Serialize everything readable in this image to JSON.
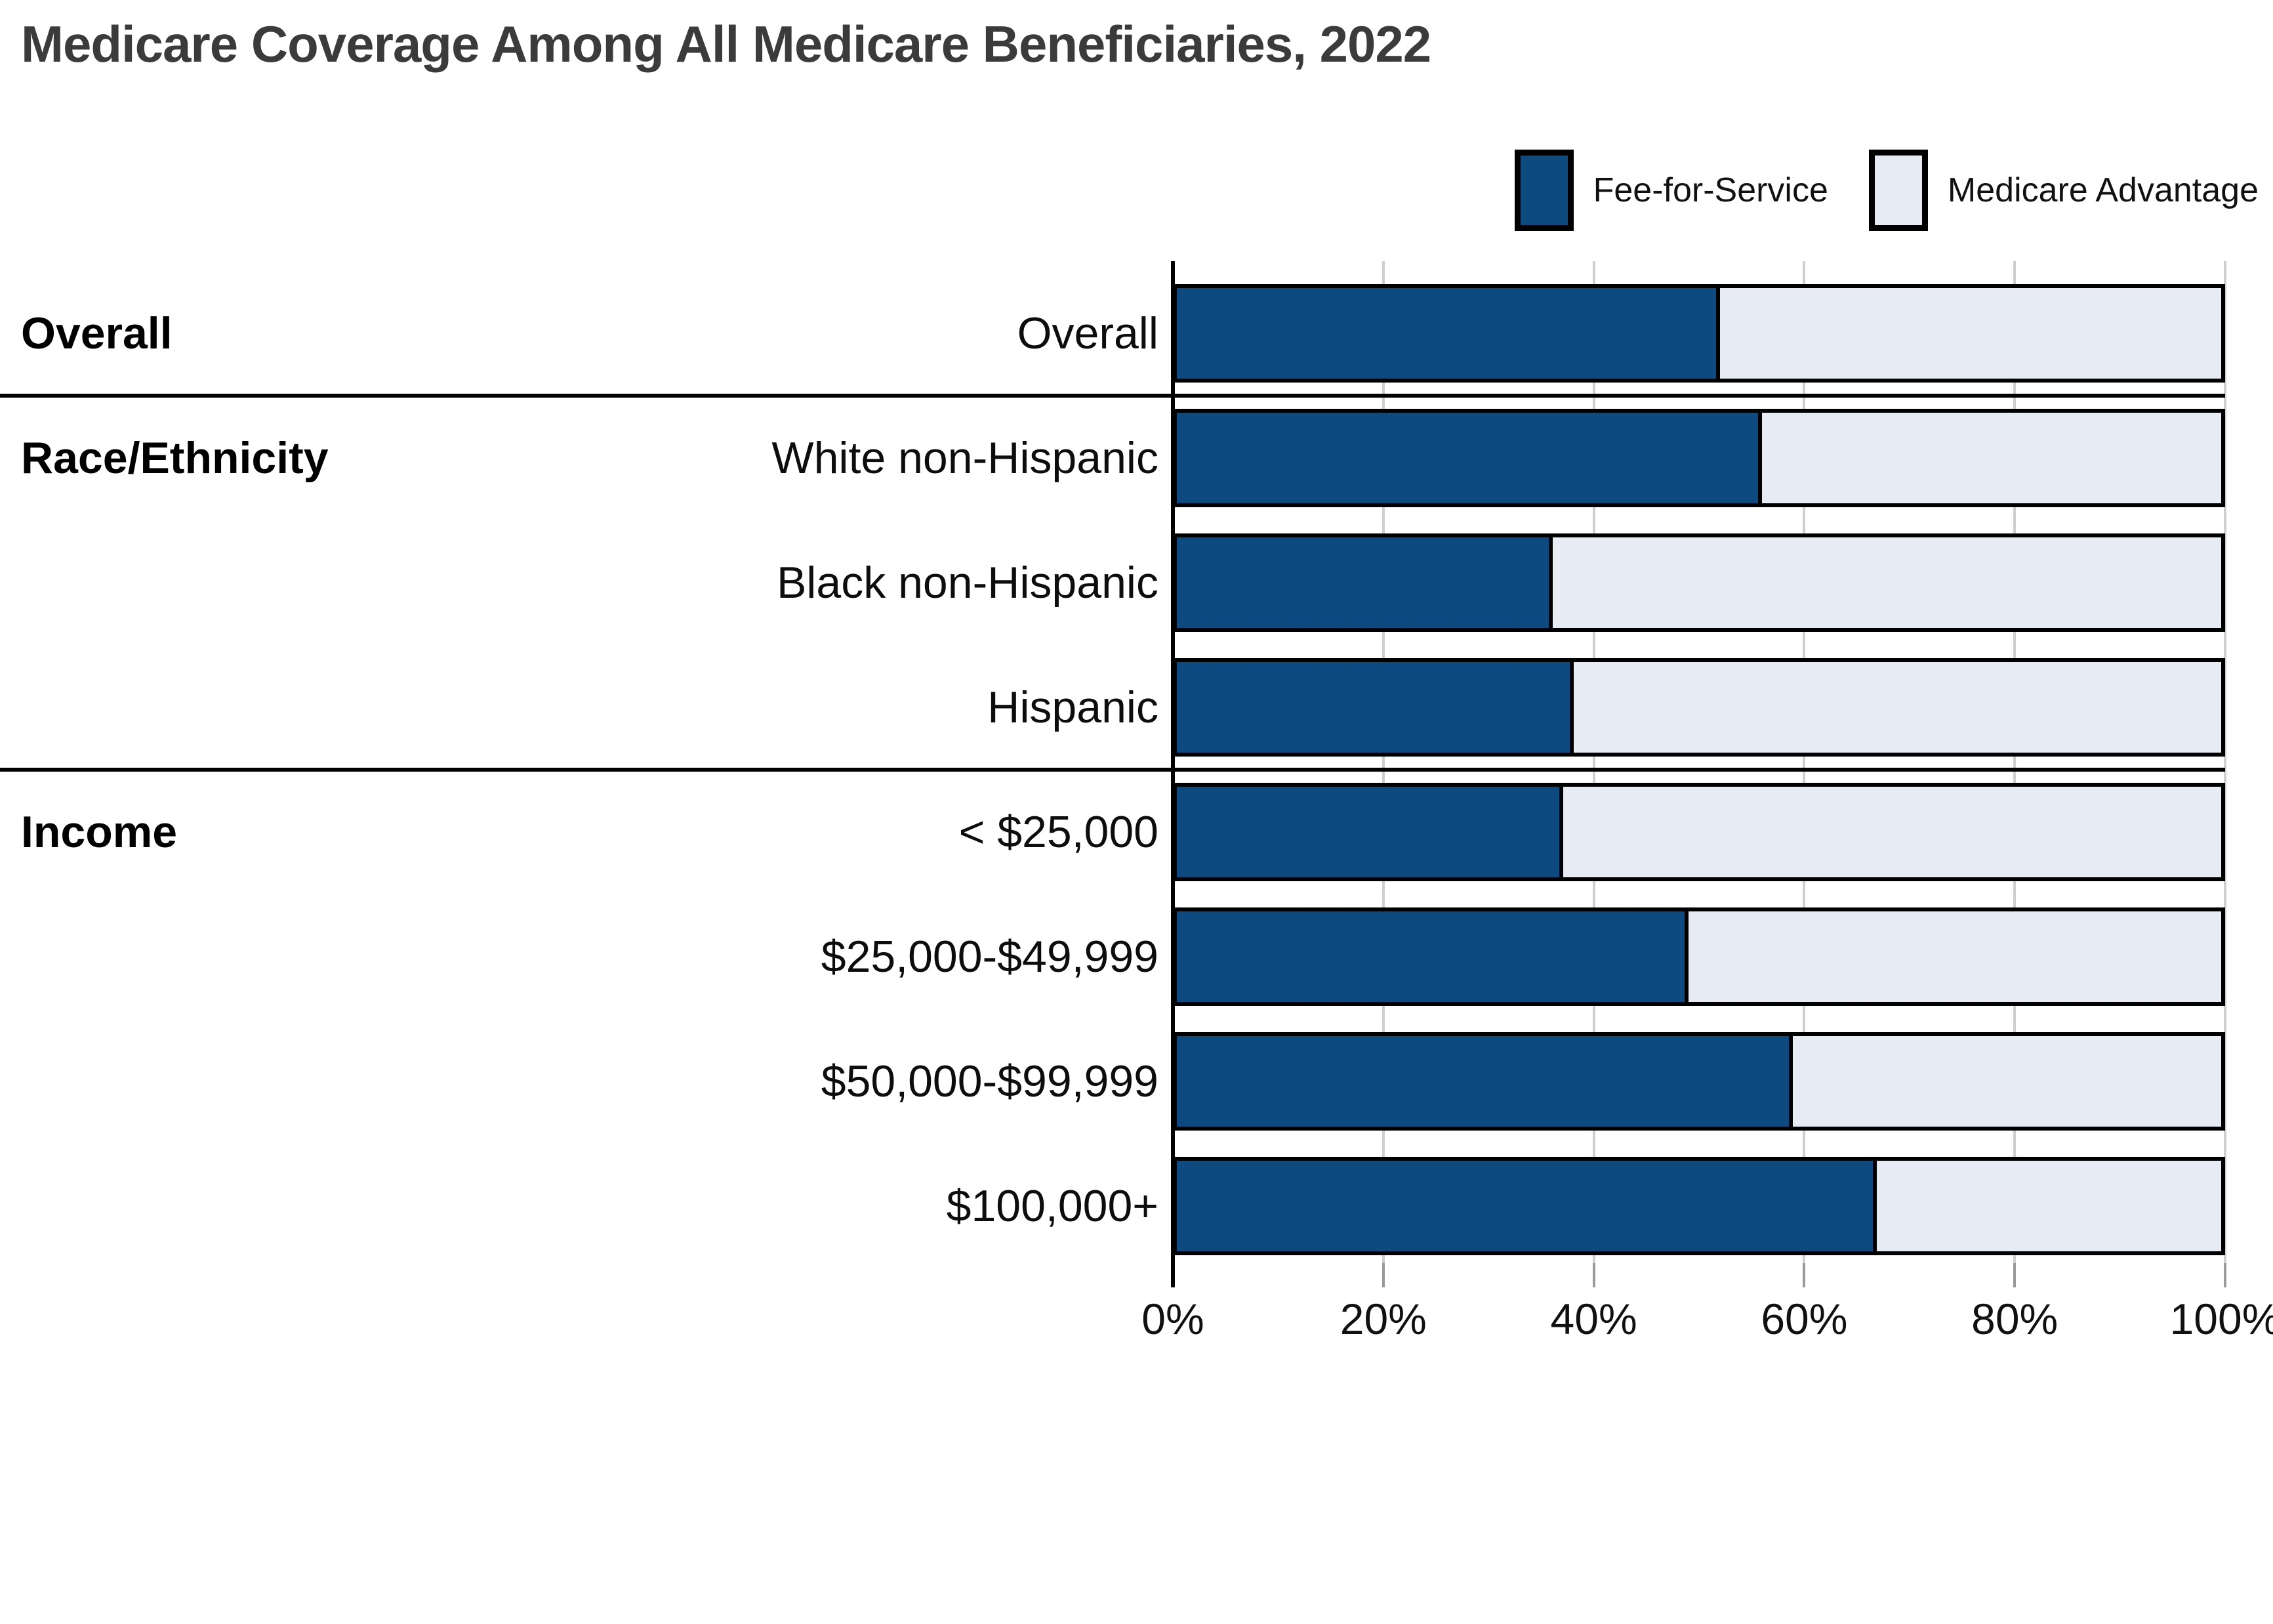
{
  "title": "Medicare Coverage Among All Medicare Beneficiaries, 2022",
  "legend": {
    "items": [
      {
        "name": "Fee-for-Service",
        "color": "#0d4a7f"
      },
      {
        "name": "Medicare Advantage",
        "color": "#e7ebf3"
      }
    ],
    "position": "top-right"
  },
  "chart_data": {
    "type": "bar",
    "orientation": "horizontal",
    "stacked": true,
    "title": "Medicare Coverage Among All Medicare Beneficiaries, 2022",
    "categories": [
      "Overall",
      "White non-Hispanic",
      "Black non-Hispanic",
      "Hispanic",
      "< $25,000",
      "$25,000-$49,999",
      "$50,000-$99,999",
      "$100,000+"
    ],
    "series": [
      {
        "name": "Fee-for-Service",
        "color": "#0d4a7f",
        "values": [
          52,
          56,
          36,
          38,
          37,
          49,
          59,
          67
        ]
      },
      {
        "name": "Medicare Advantage",
        "color": "#e7ebf3",
        "values": [
          48,
          44,
          64,
          62,
          63,
          51,
          41,
          33
        ]
      }
    ],
    "sections": [
      {
        "label": "Overall",
        "start_row": 0
      },
      {
        "label": "Race/Ethnicity",
        "start_row": 1
      },
      {
        "label": "Income",
        "start_row": 4
      }
    ],
    "x_ticks": [
      "0%",
      "20%",
      "40%",
      "60%",
      "80%",
      "100%"
    ],
    "x_range": [
      0,
      100
    ],
    "xlabel": "",
    "ylabel": "",
    "grid": true,
    "gridline_color": "#cfcfcf",
    "bar_border_color": "#000000",
    "legend_position": "top-right"
  }
}
